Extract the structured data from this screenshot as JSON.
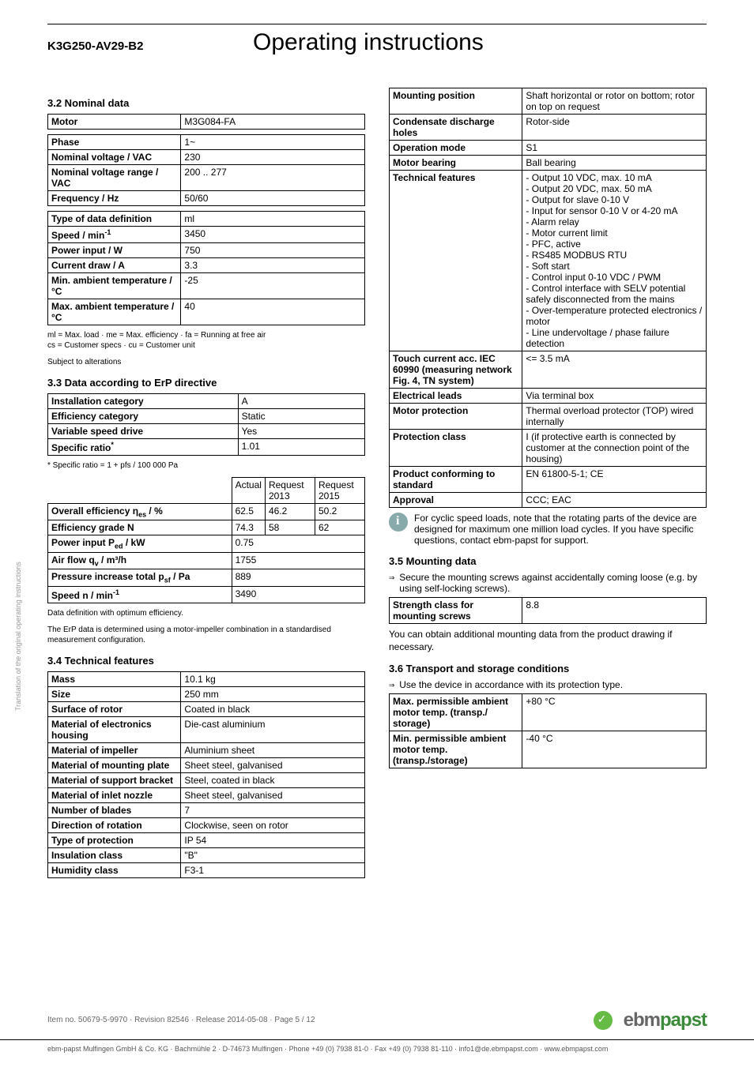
{
  "header": {
    "model": "K3G250-AV29-B2",
    "title": "Operating instructions"
  },
  "side_text": "Translation of the original operating instructions",
  "left": {
    "h_nominal": "3.2 Nominal data",
    "motor_row": {
      "label": "Motor",
      "value": "M3G084-FA"
    },
    "nominal_rows": [
      {
        "label": "Phase",
        "value": "1~"
      },
      {
        "label": "Nominal voltage / VAC",
        "value": "230"
      },
      {
        "label": "Nominal voltage range / VAC",
        "value": "200 .. 277"
      },
      {
        "label": "Frequency / Hz",
        "value": "50/60"
      }
    ],
    "nominal_rows2": [
      {
        "label": "Type of data definition",
        "value": "ml"
      },
      {
        "label": "Speed / min-1",
        "label_html": "Speed / min<sup>-1</sup>",
        "value": "3450"
      },
      {
        "label": "Power input / W",
        "value": "750"
      },
      {
        "label": "Current draw / A",
        "value": "3.3"
      },
      {
        "label": "Min. ambient temperature / °C",
        "value": "-25"
      },
      {
        "label": "Max. ambient temperature / °C",
        "value": "40"
      }
    ],
    "nominal_note1": "ml = Max. load · me = Max. efficiency · fa = Running at free air\ncs = Customer specs · cu = Customer unit",
    "nominal_note2": "Subject to alterations",
    "h_erp": "3.3 Data according to ErP directive",
    "erp1_rows": [
      {
        "label": "Installation category",
        "value": "A"
      },
      {
        "label": "Efficiency category",
        "value": "Static"
      },
      {
        "label": "Variable speed drive",
        "value": "Yes"
      },
      {
        "label": "Specific ratio*",
        "label_html": "Specific ratio<sup>*</sup>",
        "value": "1.01"
      }
    ],
    "erp1_note": "* Specific ratio = 1 + pfs / 100 000 Pa",
    "erp2_headers": [
      "",
      "Actual",
      "Request 2013",
      "Request 2015"
    ],
    "erp2_rows": [
      {
        "label": "Overall efficiency ηes / %",
        "label_html": "Overall efficiency η<sub>es</sub> / %",
        "v": [
          "62.5",
          "46.2",
          "50.2"
        ]
      },
      {
        "label": "Efficiency grade N",
        "v": [
          "74.3",
          "58",
          "62"
        ]
      },
      {
        "label": "Power input Ped / kW",
        "label_html": "Power input P<sub>ed</sub> / kW",
        "v": [
          "0.75",
          "",
          ""
        ]
      },
      {
        "label": "Air flow qv / m³/h",
        "label_html": "Air flow q<sub>v</sub> / m³/h",
        "v": [
          "1755",
          "",
          ""
        ]
      },
      {
        "label": "Pressure increase total psf / Pa",
        "label_html": "Pressure increase total p<sub>sf</sub> / Pa",
        "v": [
          "889",
          "",
          ""
        ]
      },
      {
        "label": "Speed n / min-1",
        "label_html": "Speed n / min<sup>-1</sup>",
        "v": [
          "3490",
          "",
          ""
        ]
      }
    ],
    "erp2_note1": "Data definition with optimum efficiency.",
    "erp2_note2": "The ErP data is determined using a motor-impeller combination in a standardised measurement configuration.",
    "h_tech": "3.4 Technical features",
    "tech_rows": [
      {
        "label": "Mass",
        "value": "10.1 kg"
      },
      {
        "label": "Size",
        "value": "250 mm"
      },
      {
        "label": "Surface of rotor",
        "value": "Coated in black"
      },
      {
        "label": "Material of electronics housing",
        "value": "Die-cast aluminium"
      },
      {
        "label": "Material of impeller",
        "value": "Aluminium sheet"
      },
      {
        "label": "Material of mounting plate",
        "value": "Sheet steel, galvanised"
      },
      {
        "label": "Material of support bracket",
        "value": "Steel, coated in black"
      },
      {
        "label": "Material of inlet nozzle",
        "value": "Sheet steel, galvanised"
      },
      {
        "label": "Number of blades",
        "value": "7"
      },
      {
        "label": "Direction of rotation",
        "value": "Clockwise, seen on rotor"
      },
      {
        "label": "Type of protection",
        "value": "IP 54"
      },
      {
        "label": "Insulation class",
        "value": "\"B\""
      },
      {
        "label": "Humidity class",
        "value": "F3-1"
      }
    ]
  },
  "right": {
    "tech_rows2": [
      {
        "label": "Mounting position",
        "value": "Shaft horizontal or rotor on bottom; rotor on top on request"
      },
      {
        "label": "Condensate discharge holes",
        "value": "Rotor-side"
      },
      {
        "label": "Operation mode",
        "value": "S1"
      },
      {
        "label": "Motor bearing",
        "value": "Ball bearing"
      },
      {
        "label": "Technical features",
        "value": "- Output 10 VDC, max. 10 mA\n- Output 20 VDC, max. 50 mA\n- Output for slave 0-10 V\n- Input for sensor 0-10 V or 4-20 mA\n- Alarm relay\n- Motor current limit\n- PFC, active\n- RS485 MODBUS RTU\n- Soft start\n- Control input 0-10 VDC / PWM\n- Control interface with SELV potential safely disconnected from the mains\n- Over-temperature protected electronics / motor\n- Line undervoltage / phase failure detection"
      },
      {
        "label": "Touch current acc. IEC 60990 (measuring network Fig. 4, TN system)",
        "value": "<= 3.5 mA"
      },
      {
        "label": "Electrical leads",
        "value": "Via terminal box"
      },
      {
        "label": "Motor protection",
        "value": "Thermal overload protector (TOP) wired internally"
      },
      {
        "label": "Protection class",
        "value": "I (if protective earth is connected by customer at the connection point of the housing)"
      },
      {
        "label": "Product conforming to standard",
        "value": "EN 61800-5-1; CE"
      },
      {
        "label": "Approval",
        "value": "CCC; EAC"
      }
    ],
    "info_cyclic": "For cyclic speed loads, note that the rotating parts of the device are designed for maximum one million load cycles. If you have specific questions, contact ebm-papst for support.",
    "h_mount": "3.5 Mounting data",
    "mount_arrow": "Secure the mounting screws against accidentally coming loose (e.g. by using self-locking screws).",
    "mount_rows": [
      {
        "label": "Strength class for mounting screws",
        "value": "8.8"
      }
    ],
    "mount_note": "You can obtain additional mounting data from the product drawing if necessary.",
    "h_transport": "3.6 Transport and storage conditions",
    "transport_arrow": "Use the device in accordance with its protection type.",
    "transport_rows": [
      {
        "label": "Max. permissible ambient motor temp. (transp./ storage)",
        "value": "+80 °C"
      },
      {
        "label": "Min. permissible ambient motor temp. (transp./storage)",
        "value": "-40 °C"
      }
    ]
  },
  "footer": {
    "left": "Item no. 50679-5-9970 · Revision 82546 · Release 2014-05-08 · Page 5 / 12",
    "brand_plain": "ebm",
    "brand_green": "papst",
    "bottom": "ebm-papst Mulfingen GmbH & Co. KG · Bachmühle 2 · D-74673 Mulfingen · Phone +49 (0) 7938 81-0 · Fax +49 (0) 7938 81-110 · info1@de.ebmpapst.com · www.ebmpapst.com"
  }
}
